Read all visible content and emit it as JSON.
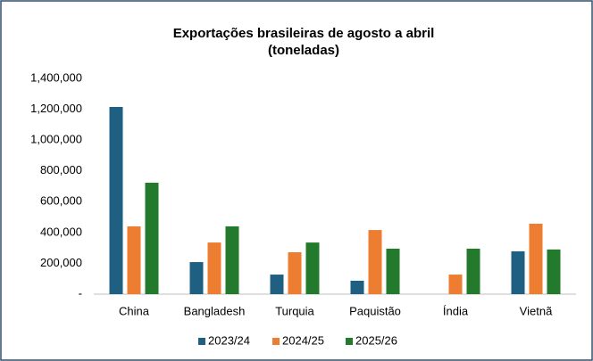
{
  "chart_data": {
    "type": "bar",
    "title": "Exportações brasileiras de agosto a abril",
    "subtitle": "(toneladas)",
    "categories": [
      "China",
      "Bangladesh",
      "Turquia",
      "Paquistão",
      "Índia",
      "Vietnã"
    ],
    "series": [
      {
        "name": "2023/24",
        "color": "#1f5f82",
        "values": [
          1215000,
          208000,
          127000,
          87000,
          null,
          278000
        ]
      },
      {
        "name": "2024/25",
        "color": "#ed7d31",
        "values": [
          440000,
          335000,
          272000,
          416000,
          127000,
          457000
        ]
      },
      {
        "name": "2025/26",
        "color": "#237a2c",
        "values": [
          723000,
          440000,
          335000,
          295000,
          295000,
          290000
        ]
      }
    ],
    "ylim": [
      0,
      1400000
    ],
    "yticks": [
      {
        "value": 0,
        "label": "-"
      },
      {
        "value": 200000,
        "label": "200,000"
      },
      {
        "value": 400000,
        "label": "400,000"
      },
      {
        "value": 600000,
        "label": "600,000"
      },
      {
        "value": 800000,
        "label": "800,000"
      },
      {
        "value": 1000000,
        "label": "1,000,000"
      },
      {
        "value": 1200000,
        "label": "1,200,000"
      },
      {
        "value": 1400000,
        "label": "1,400,000"
      }
    ],
    "grid": false,
    "legend": "bottom"
  }
}
